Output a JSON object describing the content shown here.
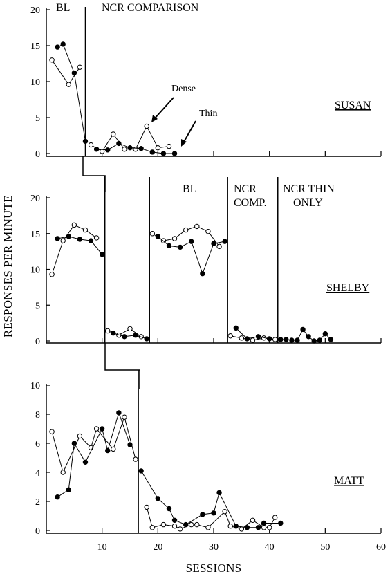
{
  "chart_data": {
    "type": "line",
    "xlabel": "SESSIONS",
    "ylabel": "RESPONSES PER MINUTE",
    "xlim": [
      0,
      60
    ],
    "xticks": [
      "10",
      "20",
      "30",
      "40",
      "50",
      "60"
    ],
    "grid": false,
    "panels": [
      {
        "participant": "SUSAN",
        "ylim": [
          0,
          20
        ],
        "yticks": [
          "0",
          "5",
          "10",
          "15",
          "20"
        ],
        "phase_lines": [
          7
        ],
        "phase_labels": [
          "BL",
          "NCR COMPARISON"
        ],
        "annotations": [
          "Dense",
          "Thin"
        ],
        "series": [
          {
            "name": "Dense",
            "marker": "open",
            "points": [
              [
                1,
                13
              ],
              [
                4,
                9.6
              ],
              [
                6,
                12
              ],
              [
                8,
                1.2
              ],
              [
                10,
                0.3
              ],
              [
                12,
                2.7
              ],
              [
                14,
                0.6
              ],
              [
                16,
                0.6
              ],
              [
                18,
                3.8
              ],
              [
                20,
                0.8
              ],
              [
                22,
                1
              ]
            ]
          },
          {
            "name": "Thin",
            "marker": "filled",
            "points": [
              [
                2,
                14.8
              ],
              [
                3,
                15.2
              ],
              [
                5,
                11.2
              ],
              [
                7,
                1.7
              ],
              [
                9,
                0.6
              ],
              [
                11,
                0.5
              ],
              [
                13,
                1.4
              ],
              [
                15,
                0.8
              ],
              [
                17,
                0.7
              ],
              [
                19,
                0.2
              ],
              [
                21,
                0
              ],
              [
                23,
                0
              ]
            ]
          }
        ]
      },
      {
        "participant": "SHELBY",
        "ylim": [
          0,
          20
        ],
        "yticks": [
          "0",
          "5",
          "10",
          "15",
          "20"
        ],
        "phase_lines": [
          10.5,
          18.5,
          32.5,
          41.5
        ],
        "phase_labels": [
          "BL",
          "NCR",
          "COMP.",
          "NCR THIN",
          "ONLY"
        ],
        "series": [
          {
            "name": "",
            "marker": "open",
            "points": [
              [
                1,
                9.3
              ],
              [
                3,
                14
              ],
              [
                5,
                16.2
              ],
              [
                7,
                15.5
              ],
              [
                9,
                14.4
              ],
              [
                11,
                1.4
              ],
              [
                13,
                0.8
              ],
              [
                15,
                1.7
              ],
              [
                17,
                0.6
              ],
              [
                19,
                15
              ],
              [
                21,
                14
              ],
              [
                23,
                14.3
              ],
              [
                25,
                15.5
              ],
              [
                27,
                16
              ],
              [
                29,
                15.3
              ],
              [
                31,
                13.2
              ],
              [
                33,
                0.7
              ],
              [
                35,
                0.4
              ],
              [
                37,
                0.1
              ],
              [
                39,
                0.4
              ],
              [
                41,
                0.2
              ]
            ]
          },
          {
            "name": "",
            "marker": "filled",
            "points": [
              [
                2,
                14.3
              ],
              [
                4,
                14.6
              ],
              [
                6,
                14.2
              ],
              [
                8,
                14
              ],
              [
                10,
                12.1
              ],
              [
                12,
                1.1
              ],
              [
                14,
                0.6
              ],
              [
                16,
                0.8
              ],
              [
                18,
                0.3
              ],
              [
                20,
                14.6
              ],
              [
                22,
                13.3
              ],
              [
                24,
                13.1
              ],
              [
                26,
                13.9
              ],
              [
                28,
                9.4
              ],
              [
                30,
                13.6
              ],
              [
                32,
                13.9
              ],
              [
                34,
                1.8
              ],
              [
                36,
                0.3
              ],
              [
                38,
                0.6
              ],
              [
                40,
                0.3
              ],
              [
                42,
                0.2
              ],
              [
                43,
                0.2
              ],
              [
                44,
                0.1
              ],
              [
                45,
                0.1
              ],
              [
                46,
                1.6
              ],
              [
                47,
                0.6
              ],
              [
                48,
                0
              ],
              [
                49,
                0.1
              ],
              [
                50,
                1
              ],
              [
                51,
                0.2
              ]
            ]
          }
        ]
      },
      {
        "participant": "MATT",
        "ylim": [
          0,
          10
        ],
        "yticks": [
          "0",
          "2",
          "4",
          "6",
          "8",
          "10"
        ],
        "phase_lines": [
          16.5
        ],
        "series": [
          {
            "name": "",
            "marker": "open",
            "points": [
              [
                1,
                6.8
              ],
              [
                3,
                4
              ],
              [
                6,
                6.5
              ],
              [
                8,
                5.7
              ],
              [
                9,
                7
              ],
              [
                12,
                5.6
              ],
              [
                14,
                7.8
              ],
              [
                16,
                4.9
              ],
              [
                18,
                1.6
              ],
              [
                19,
                0.2
              ],
              [
                21,
                0.4
              ],
              [
                23,
                0.3
              ],
              [
                24,
                0.1
              ],
              [
                26,
                0.4
              ],
              [
                27,
                0.4
              ],
              [
                29,
                0.2
              ],
              [
                32,
                1.3
              ],
              [
                33,
                0.3
              ],
              [
                35,
                0.1
              ],
              [
                37,
                0.7
              ],
              [
                39,
                0.2
              ],
              [
                40,
                0.2
              ],
              [
                41,
                0.9
              ]
            ]
          },
          {
            "name": "",
            "marker": "filled",
            "points": [
              [
                2,
                2.3
              ],
              [
                4,
                2.8
              ],
              [
                5,
                6
              ],
              [
                7,
                4.7
              ],
              [
                10,
                7
              ],
              [
                11,
                5.5
              ],
              [
                13,
                8.1
              ],
              [
                15,
                5.9
              ],
              [
                17,
                4.1
              ],
              [
                20,
                2.2
              ],
              [
                22,
                1.5
              ],
              [
                23,
                0.7
              ],
              [
                25,
                0.4
              ],
              [
                28,
                1.1
              ],
              [
                30,
                1.2
              ],
              [
                31,
                2.6
              ],
              [
                34,
                0.3
              ],
              [
                36,
                0.2
              ],
              [
                38,
                0.2
              ],
              [
                39,
                0.5
              ],
              [
                42,
                0.5
              ]
            ]
          }
        ]
      }
    ]
  }
}
